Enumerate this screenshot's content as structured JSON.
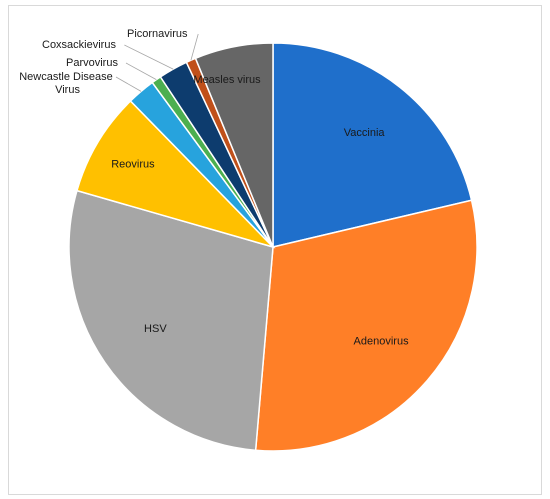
{
  "chart_data": {
    "type": "pie",
    "title": "",
    "legend": "none",
    "series": [
      {
        "values": [
          {
            "label": "Vaccinia",
            "value": 22,
            "color": "#1f6fcb"
          },
          {
            "label": "Adenovirus",
            "value": 31,
            "color": "#ff7f27"
          },
          {
            "label": "HSV",
            "value": 29,
            "color": "#a6a6a6"
          },
          {
            "label": "Reovirus",
            "value": 8.5,
            "color": "#ffc000"
          },
          {
            "label": "Newcastle Disease Virus",
            "value": 2.3,
            "color": "#27a3dd"
          },
          {
            "label": "Parvovirus",
            "value": 0.8,
            "color": "#4caf50"
          },
          {
            "label": "Coxsackievirus",
            "value": 2.4,
            "color": "#0d3c6e"
          },
          {
            "label": "Picornavirus",
            "value": 0.8,
            "color": "#c0501a"
          },
          {
            "label": "Measles virus",
            "value": 6.4,
            "color": "#666666"
          }
        ]
      }
    ]
  }
}
